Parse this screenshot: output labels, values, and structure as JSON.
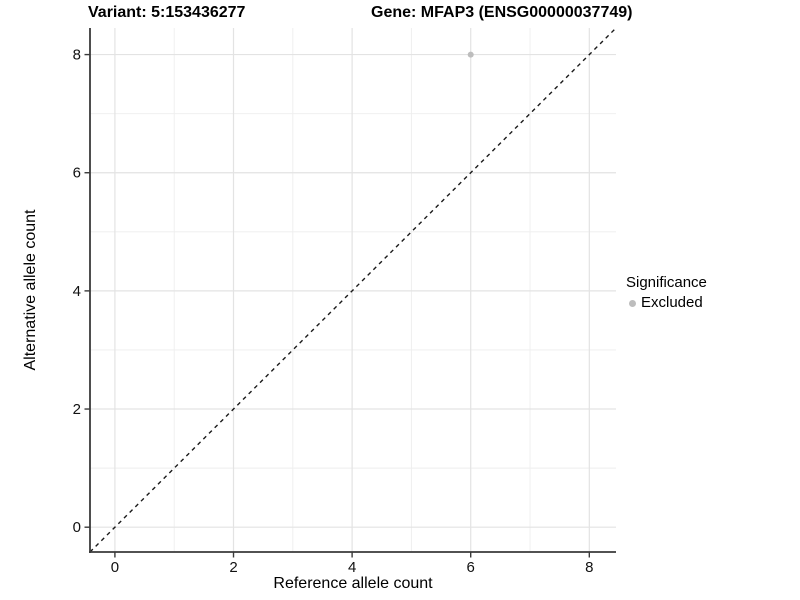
{
  "chart_data": {
    "type": "scatter",
    "titles": {
      "left": "Variant: 5:153436277",
      "right": "Gene: MFAP3 (ENSG00000037749)"
    },
    "xlabel": "Reference allele count",
    "ylabel": "Alternative allele count",
    "xlim": [
      -0.42,
      8.45
    ],
    "ylim": [
      -0.42,
      8.45
    ],
    "x_ticks": [
      0,
      2,
      4,
      6,
      8
    ],
    "y_ticks": [
      0,
      2,
      4,
      6,
      8
    ],
    "x_minor_ticks": [
      1,
      3,
      5,
      7
    ],
    "y_minor_ticks": [
      1,
      3,
      5,
      7
    ],
    "grid": "major and minor, light gray on white panel",
    "reference_line": {
      "kind": "identity",
      "slope": 1,
      "intercept": 0,
      "style": "dashed",
      "color": "#1a1a1a"
    },
    "series": [
      {
        "name": "Excluded",
        "marker": "circle",
        "color": "#bdbdbd",
        "points": [
          {
            "x": 6,
            "y": 8
          }
        ]
      }
    ],
    "legend": {
      "title": "Significance",
      "position": "right-middle",
      "entries": [
        {
          "label": "Excluded",
          "color": "#bdbdbd"
        }
      ]
    },
    "style": {
      "grid_major_color": "#e3e3e3",
      "grid_minor_color": "#eeeeee",
      "axis_line_color": "#3a3a3a",
      "tick_label_color": "#111111",
      "point_color": "#bdbdbd",
      "panel_bg": "#ffffff"
    }
  }
}
